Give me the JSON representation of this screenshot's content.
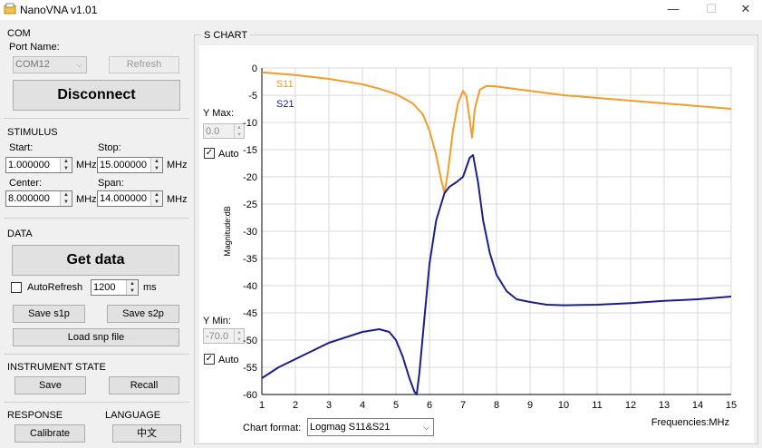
{
  "window": {
    "title": "NanoVNA v1.01",
    "minimize": "—",
    "maximize": "☐",
    "close": "✕"
  },
  "com": {
    "group": "COM",
    "port_label": "Port Name:",
    "port_value": "COM12",
    "refresh": "Refresh",
    "disconnect": "Disconnect"
  },
  "stimulus": {
    "group": "STIMULUS",
    "start_label": "Start:",
    "start_value": "1.000000",
    "stop_label": "Stop:",
    "stop_value": "15.000000",
    "center_label": "Center:",
    "center_value": "8.000000",
    "span_label": "Span:",
    "span_value": "14.000000",
    "unit": "MHz"
  },
  "data_panel": {
    "group": "DATA",
    "get_data": "Get data",
    "autorefresh": "AutoRefresh",
    "autorefresh_checked": false,
    "interval_value": "1200",
    "interval_unit": "ms",
    "save_s1p": "Save s1p",
    "save_s2p": "Save s2p",
    "load_snp": "Load snp file"
  },
  "instrument": {
    "group": "INSTRUMENT STATE",
    "save": "Save",
    "recall": "Recall"
  },
  "response": {
    "group": "RESPONSE",
    "calibrate": "Calibrate"
  },
  "language": {
    "group": "LANGUAGE",
    "value": "中文"
  },
  "schart": {
    "group": "S CHART",
    "ymax_label": "Y Max:",
    "ymax_value": "0.0",
    "ymin_label": "Y Min:",
    "ymin_value": "-70.0",
    "auto_label": "Auto",
    "chart_format_label": "Chart format:",
    "chart_format_value": "Logmag S11&S21"
  },
  "chart_data": {
    "type": "line",
    "ylabel": "Magnitude:dB",
    "xlabel": "Frequencies:MHz",
    "xlim": [
      1,
      15
    ],
    "ylim": [
      -60,
      0
    ],
    "xticks": [
      "1",
      "2",
      "3",
      "4",
      "5",
      "6",
      "7",
      "8",
      "9",
      "10",
      "11",
      "12",
      "13",
      "14",
      "15"
    ],
    "yticks": [
      "0",
      "-5",
      "-10",
      "-15",
      "-20",
      "-25",
      "-30",
      "-35",
      "-40",
      "-45",
      "-50",
      "-55",
      "-60"
    ],
    "grid": true,
    "legend_placement": "top-left",
    "series": [
      {
        "name": "S11",
        "color": "#f39c2b",
        "x": [
          1,
          2,
          3,
          4,
          4.5,
          5,
          5.5,
          5.8,
          6.0,
          6.2,
          6.35,
          6.45,
          6.55,
          6.7,
          6.85,
          7.0,
          7.1,
          7.2,
          7.27,
          7.35,
          7.5,
          7.7,
          8,
          9,
          10,
          11,
          12,
          13,
          14,
          15
        ],
        "y": [
          -0.8,
          -1.3,
          -2.0,
          -3.0,
          -3.8,
          -4.8,
          -6.5,
          -8.5,
          -11.5,
          -16,
          -20.5,
          -23.0,
          -19,
          -11.5,
          -6.5,
          -4.2,
          -5.2,
          -9.5,
          -12.8,
          -7.5,
          -4.0,
          -3.3,
          -3.4,
          -4.2,
          -5.0,
          -5.5,
          -6.0,
          -6.5,
          -7.0,
          -7.5
        ]
      },
      {
        "name": "S21",
        "color": "#1b1f8a",
        "x": [
          1,
          1.5,
          2,
          3,
          4,
          4.5,
          4.8,
          5.0,
          5.2,
          5.4,
          5.55,
          5.62,
          5.7,
          5.85,
          6.0,
          6.2,
          6.45,
          6.6,
          6.8,
          7.0,
          7.2,
          7.3,
          7.45,
          7.6,
          7.8,
          8.0,
          8.3,
          8.6,
          9,
          9.5,
          10,
          11,
          12,
          13,
          14,
          15
        ],
        "y": [
          -57,
          -55,
          -53.5,
          -50.5,
          -48.5,
          -48.0,
          -48.5,
          -50,
          -53,
          -57,
          -59.5,
          -60,
          -56,
          -46,
          -36,
          -28,
          -23,
          -21.8,
          -21,
          -20,
          -16.5,
          -16,
          -21,
          -28,
          -34,
          -38,
          -41,
          -42.5,
          -43,
          -43.5,
          -43.6,
          -43.5,
          -43.2,
          -42.8,
          -42.5,
          -42.0
        ]
      }
    ]
  }
}
